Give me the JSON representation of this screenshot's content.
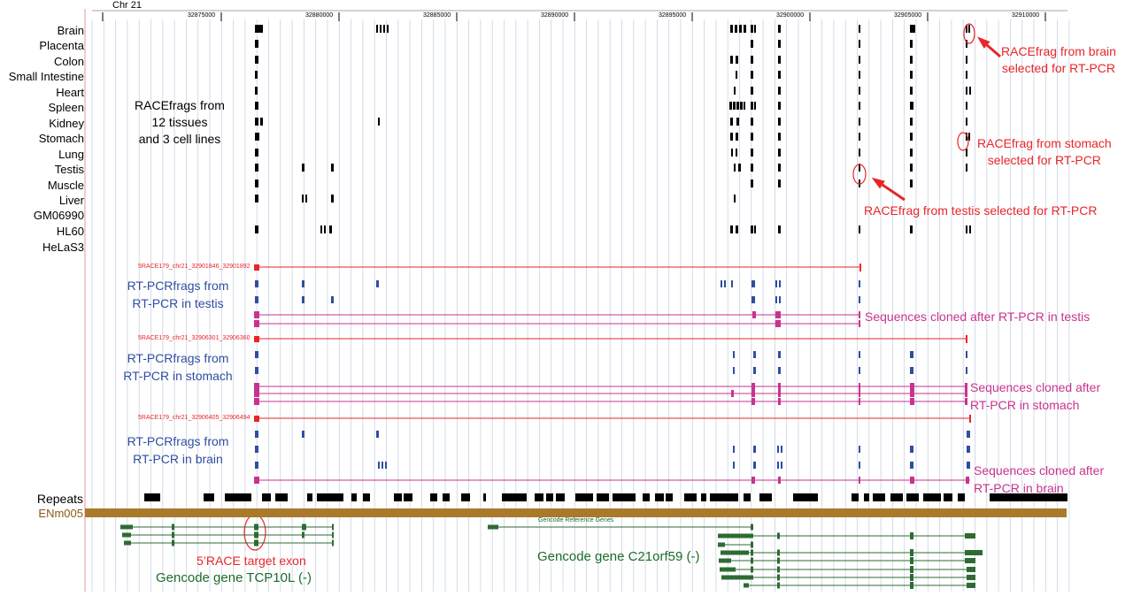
{
  "chromosome": "Chr 21",
  "axis": {
    "tick_labels": [
      "32875000",
      "32880000",
      "32885000",
      "32890000",
      "32895000",
      "32900000",
      "32905000",
      "32910000"
    ]
  },
  "tissues": [
    "Brain",
    "Placenta",
    "Colon",
    "Small Intestine",
    "Heart",
    "Spleen",
    "Kidney",
    "Stomach",
    "Lung",
    "Testis",
    "Muscle",
    "Liver",
    "GM06990",
    "HL60",
    "HeLaS3"
  ],
  "racefrag_note": [
    "RACEfrags from",
    "12 tissues",
    "and 3 cell lines"
  ],
  "callouts": {
    "brain": [
      "RACEfrag from brain",
      "selected for RT-PCR"
    ],
    "stomach": [
      "RACEfrag from stomach",
      "selected for RT-PCR"
    ],
    "testis": "RACEfrag from testis selected for RT-PCR"
  },
  "sections": [
    {
      "id": "testis",
      "primer_label": "5RACE179_chr21_32901846_32901892",
      "rtpcr_label": [
        "RT-PCRfrags from",
        "RT-PCR in testis"
      ],
      "cloned_label": [
        "Sequences cloned after RT-PCR in testis"
      ]
    },
    {
      "id": "stomach",
      "primer_label": "5RACE179_chr21_32906301_32906360",
      "rtpcr_label": [
        "RT-PCRfrags from",
        "RT-PCR in stomach"
      ],
      "cloned_label": [
        "Sequences cloned after",
        "RT-PCR in stomach"
      ]
    },
    {
      "id": "brain",
      "primer_label": "5RACE179_chr21_32906405_32906494",
      "rtpcr_label": [
        "RT-PCRfrags from",
        "RT-PCR in brain"
      ],
      "cloned_label": [
        "Sequences cloned after",
        "RT-PCR in brain"
      ]
    }
  ],
  "repeats_label": "Repeats",
  "region_label": "ENm005",
  "gencode_ref_label": "Gencode Reference Genes",
  "target_exon_label": "5’RACE target exon",
  "gene_tcp10l": "Gencode gene TCP10L (-)",
  "gene_c21orf59": "Gencode gene  C21orf59 (-)",
  "colors": {
    "race": "#000000",
    "highlight": "#e8262a",
    "rtpcr": "#2f4ea0",
    "cloned": "#c8338f",
    "gene": "#2e6b33",
    "region": "#a97a2a",
    "grid": "#c9d3e3"
  }
}
